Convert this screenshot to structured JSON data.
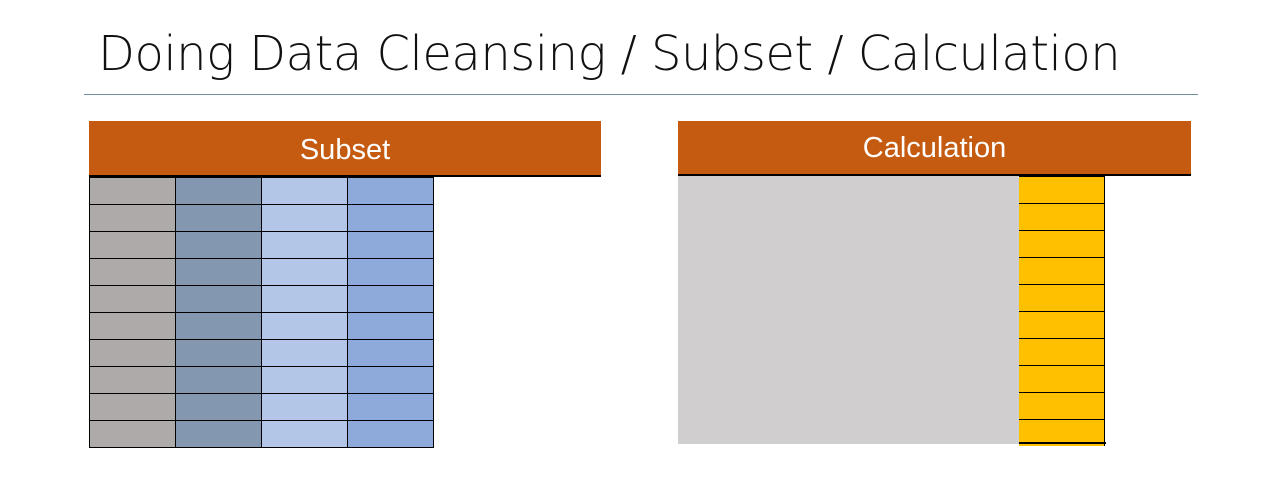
{
  "slide": {
    "title": "Doing Data Cleansing / Subset / Calculation"
  },
  "subset": {
    "header": "Subset",
    "rows": 10,
    "column_colors": [
      "#aeaaaa",
      "#8497b0",
      "#b4c6e7",
      "#8eaadb"
    ]
  },
  "calculation": {
    "header": "Calculation",
    "block_color": "#d0cece",
    "result_color": "#ffc000",
    "rows": 10
  },
  "colors": {
    "header_bg": "#c55a11",
    "header_text": "#ffffff"
  }
}
